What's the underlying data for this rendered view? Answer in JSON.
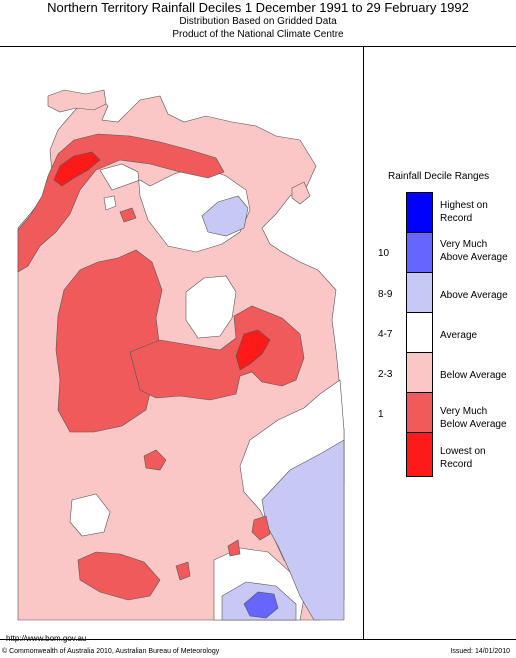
{
  "header": {
    "title": "Northern Territory Rainfall Deciles     1 December 1991 to 29 February 1992",
    "subtitle_1": "Distribution Based on Gridded Data",
    "subtitle_2": "Product of the National Climate Centre"
  },
  "legend": {
    "title": "Rainfall Decile Ranges",
    "items": [
      {
        "label_1": "Highest on",
        "label_2": "Record",
        "decile": "",
        "color": "#0000ff"
      },
      {
        "label_1": "Very Much",
        "label_2": "Above Average",
        "decile": "10",
        "color": "#6666ff"
      },
      {
        "label_1": "Above Average",
        "label_2": "",
        "decile": "8-9",
        "color": "#c8c8f5"
      },
      {
        "label_1": "Average",
        "label_2": "",
        "decile": "4-7",
        "color": "#ffffff"
      },
      {
        "label_1": "Below Average",
        "label_2": "",
        "decile": "2-3",
        "color": "#fac6c6"
      },
      {
        "label_1": "Very Much",
        "label_2": "Below Average",
        "decile": "1",
        "color": "#f05a5a"
      },
      {
        "label_1": "Lowest on",
        "label_2": "Record",
        "decile": "",
        "color": "#ff1a1a"
      }
    ]
  },
  "footer": {
    "url": "http://www.bom.gov.au",
    "copyright": "© Commonwealth of Australia 2010, Australian Bureau of Meteorology",
    "issued": "Issued: 14/01/2010"
  }
}
